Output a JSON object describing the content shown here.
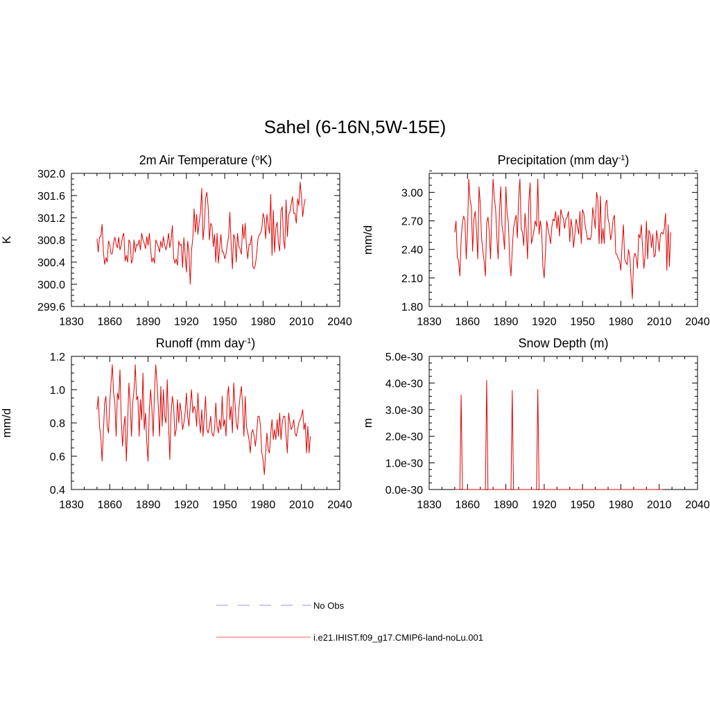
{
  "figure": {
    "title": "Sahel (6-16N,5W-15E)"
  },
  "legend": [
    {
      "label": "No Obs",
      "color": "#aaaaff",
      "dash": "dashed"
    },
    {
      "label": "i.e21.IHIST.f09_g17.CMIP6-land-noLu.001",
      "color": "#ff8080",
      "dash": "solid"
    }
  ],
  "chart_data": [
    {
      "type": "line",
      "title_main": "2m Air Temperature (",
      "title_sup": "o",
      "title_end": "K)",
      "ylabel": "K",
      "xlabel": "",
      "xlim": [
        1830,
        2040
      ],
      "ylim": [
        299.6,
        302.0
      ],
      "xticks": [
        1830,
        1860,
        1890,
        1920,
        1950,
        1980,
        2010,
        2040
      ],
      "xtick_labels": [
        "1830",
        "1860",
        "1890",
        "1920",
        "1950",
        "1980",
        "2010",
        "2040"
      ],
      "yticks": [
        299.6,
        300.0,
        300.4,
        300.8,
        301.2,
        301.6,
        302.0
      ],
      "ytick_labels": [
        "299.6",
        "300.0",
        "300.4",
        "300.8",
        "301.2",
        "301.6",
        "302.0"
      ],
      "color": "#e00000",
      "x_start": 1850,
      "values": [
        300.82,
        300.58,
        300.85,
        300.86,
        301.08,
        300.6,
        300.36,
        300.48,
        300.4,
        300.78,
        300.72,
        300.55,
        300.55,
        300.75,
        300.85,
        300.72,
        300.66,
        300.85,
        300.62,
        300.7,
        300.86,
        300.92,
        300.42,
        300.52,
        300.4,
        300.8,
        300.75,
        300.38,
        300.45,
        300.8,
        300.58,
        300.72,
        300.7,
        300.8,
        300.62,
        300.92,
        300.8,
        300.74,
        300.64,
        300.86,
        300.7,
        300.92,
        300.62,
        300.4,
        300.48,
        300.38,
        300.8,
        300.74,
        300.68,
        300.58,
        300.78,
        300.66,
        300.86,
        300.7,
        300.62,
        300.74,
        300.92,
        300.66,
        300.8,
        301.06,
        300.48,
        300.38,
        300.46,
        300.34,
        300.78,
        300.7,
        300.72,
        300.3,
        300.84,
        300.54,
        300.22,
        300.78,
        300.56,
        300.0,
        300.62,
        300.82,
        301.36,
        300.94,
        301.26,
        300.9,
        301.12,
        301.3,
        301.73,
        300.8,
        301.05,
        301.55,
        301.66,
        301.4,
        300.8,
        301.1,
        301.05,
        300.68,
        300.9,
        300.4,
        300.92,
        300.38,
        300.65,
        300.9,
        300.58,
        300.58,
        300.46,
        300.55,
        300.72,
        300.85,
        301.3,
        300.72,
        300.28,
        300.9,
        300.82,
        300.4,
        300.92,
        300.68,
        300.64,
        300.54,
        301.08,
        300.82,
        301.1,
        300.68,
        300.46,
        300.72,
        300.72,
        300.88,
        300.32,
        300.28,
        300.36,
        300.54,
        300.82,
        300.9,
        300.92,
        301.0,
        301.28,
        301.18,
        300.82,
        301.26,
        301.08,
        300.92,
        301.62,
        300.52,
        301.34,
        300.58,
        301.02,
        301.12,
        300.74,
        300.6,
        301.32,
        301.4,
        300.8,
        300.64,
        301.52,
        300.86,
        301.26,
        301.3,
        301.44,
        301.58,
        301.28,
        301.28,
        301.1,
        301.54,
        301.42,
        301.84,
        301.6,
        301.22,
        301.42,
        301.54
      ]
    },
    {
      "type": "line",
      "title_main": "Precipitation (mm day",
      "title_sup": "-1",
      "title_end": ")",
      "ylabel": "mm/d",
      "xlabel": "",
      "xlim": [
        1830,
        2040
      ],
      "ylim": [
        1.8,
        3.2
      ],
      "xticks": [
        1830,
        1860,
        1890,
        1920,
        1950,
        1980,
        2010,
        2040
      ],
      "xtick_labels": [
        "1830",
        "1860",
        "1890",
        "1920",
        "1950",
        "1980",
        "2010",
        "2040"
      ],
      "yticks": [
        1.8,
        2.1,
        2.4,
        2.7,
        3.0
      ],
      "ytick_labels": [
        "1.80",
        "2.10",
        "2.40",
        "2.70",
        "3.00"
      ],
      "color": "#e00000",
      "x_start": 1850,
      "values": [
        2.58,
        2.7,
        2.32,
        2.28,
        2.12,
        2.5,
        2.68,
        2.75,
        2.7,
        2.3,
        2.6,
        3.14,
        2.92,
        2.85,
        2.38,
        2.72,
        2.8,
        2.6,
        2.3,
        3.06,
        2.88,
        2.52,
        2.38,
        2.28,
        2.12,
        2.68,
        2.74,
        2.6,
        2.3,
        2.78,
        3.14,
        2.94,
        2.82,
        2.52,
        2.3,
        2.8,
        3.06,
        2.65,
        2.56,
        2.4,
        3.06,
        2.78,
        2.68,
        2.28,
        2.12,
        2.4,
        2.62,
        2.7,
        2.76,
        2.52,
        2.94,
        3.14,
        2.62,
        2.58,
        2.44,
        2.78,
        2.6,
        2.3,
        2.9,
        3.1,
        2.46,
        2.52,
        2.6,
        2.7,
        2.64,
        3.14,
        2.56,
        2.7,
        2.6,
        2.22,
        2.1,
        2.36,
        2.7,
        2.62,
        2.55,
        2.46,
        2.64,
        2.72,
        2.7,
        2.8,
        2.62,
        2.76,
        2.54,
        2.82,
        2.76,
        2.72,
        2.62,
        2.72,
        2.74,
        2.8,
        2.48,
        2.72,
        2.62,
        2.42,
        2.56,
        2.72,
        2.64,
        2.56,
        2.8,
        2.46,
        2.82,
        2.78,
        2.66,
        2.58,
        2.5,
        2.52,
        2.5,
        2.56,
        2.84,
        2.74,
        2.62,
        3.0,
        2.92,
        2.46,
        2.96,
        2.46,
        2.62,
        2.46,
        2.88,
        2.92,
        2.72,
        2.66,
        2.5,
        2.58,
        2.72,
        2.76,
        2.36,
        2.34,
        2.3,
        2.28,
        2.18,
        2.46,
        2.66,
        2.3,
        2.26,
        2.24,
        2.4,
        2.32,
        2.1,
        1.88,
        2.3,
        2.36,
        2.32,
        2.2,
        2.56,
        2.52,
        2.66,
        2.42,
        2.2,
        2.34,
        2.7,
        2.3,
        2.6,
        2.56,
        2.42,
        2.56,
        2.32,
        2.34,
        2.6,
        2.5,
        2.38,
        2.56,
        2.58,
        2.56,
        2.62,
        2.78,
        2.18,
        2.66,
        2.22,
        2.58
      ]
    },
    {
      "type": "line",
      "title_main": "Runoff (mm day",
      "title_sup": "-1",
      "title_end": ")",
      "ylabel": "mm/d",
      "xlabel": "",
      "xlim": [
        1830,
        2040
      ],
      "ylim": [
        0.4,
        1.2
      ],
      "xticks": [
        1830,
        1860,
        1890,
        1920,
        1950,
        1980,
        2010,
        2040
      ],
      "xtick_labels": [
        "1830",
        "1860",
        "1890",
        "1920",
        "1950",
        "1980",
        "2010",
        "2040"
      ],
      "yticks": [
        0.4,
        0.6,
        0.8,
        1.0,
        1.2
      ],
      "ytick_labels": [
        "0.4",
        "0.6",
        "0.8",
        "1.0",
        "1.2"
      ],
      "color": "#e00000",
      "x_start": 1850,
      "values": [
        0.88,
        0.96,
        0.78,
        0.72,
        0.57,
        0.74,
        0.92,
        0.96,
        0.78,
        0.74,
        0.92,
        1.04,
        1.15,
        0.98,
        0.92,
        0.72,
        0.98,
        0.94,
        1.12,
        0.82,
        0.66,
        0.78,
        0.84,
        0.57,
        0.8,
        1.04,
        0.92,
        0.72,
        0.92,
        1.0,
        1.15,
        0.94,
        0.96,
        0.72,
        0.94,
        0.82,
        1.1,
        0.76,
        0.86,
        0.68,
        0.57,
        0.88,
        1.0,
        0.88,
        0.72,
        0.98,
        1.15,
        1.04,
        0.9,
        0.72,
        1.02,
        0.78,
        1.0,
        0.84,
        0.8,
        1.06,
        0.8,
        0.58,
        0.86,
        0.96,
        0.9,
        0.72,
        0.76,
        0.94,
        0.8,
        0.92,
        0.86,
        0.76,
        0.8,
        0.86,
        0.98,
        0.84,
        0.78,
        0.9,
        1.0,
        0.86,
        0.9,
        0.88,
        0.78,
        0.98,
        0.82,
        0.74,
        0.88,
        0.72,
        0.84,
        0.96,
        0.76,
        0.74,
        0.78,
        0.84,
        0.74,
        0.72,
        0.76,
        0.92,
        0.78,
        0.74,
        0.82,
        0.76,
        0.96,
        0.78,
        0.82,
        0.72,
        0.96,
        1.02,
        0.82,
        0.9,
        0.74,
        1.04,
        0.92,
        0.8,
        0.76,
        0.88,
        0.96,
        1.02,
        0.9,
        0.72,
        0.96,
        0.78,
        0.74,
        0.7,
        0.62,
        0.74,
        0.76,
        0.72,
        0.66,
        0.74,
        0.84,
        0.84,
        0.78,
        0.62,
        0.58,
        0.49,
        0.62,
        0.74,
        0.64,
        0.62,
        0.74,
        0.82,
        0.7,
        0.76,
        0.7,
        0.82,
        0.72,
        0.86,
        0.7,
        0.8,
        0.84,
        0.84,
        0.72,
        0.62,
        0.86,
        0.8,
        0.76,
        0.78,
        0.82,
        0.74,
        0.72,
        0.76,
        0.8,
        0.82,
        0.84,
        0.88,
        0.76,
        0.8,
        0.62,
        0.78,
        0.62,
        0.72
      ]
    },
    {
      "type": "line",
      "title_main": "Snow Depth (m)",
      "title_sup": "",
      "title_end": "",
      "ylabel": "m",
      "xlabel": "",
      "xlim": [
        1830,
        2040
      ],
      "ylim": [
        0,
        5e-30
      ],
      "xticks": [
        1830,
        1860,
        1890,
        1920,
        1950,
        1980,
        2010,
        2040
      ],
      "xtick_labels": [
        "1830",
        "1860",
        "1890",
        "1920",
        "1950",
        "1980",
        "2010",
        "2040"
      ],
      "yticks": [
        0,
        1e-30,
        2e-30,
        3e-30,
        4e-30,
        5e-30
      ],
      "ytick_labels": [
        "0.0e-30",
        "1.0e-30",
        "2.0e-30",
        "3.0e-30",
        "4.0e-30",
        "5.0e-30"
      ],
      "color": "#e00000",
      "x": [
        1850,
        1854,
        1855,
        1856,
        1874,
        1875,
        1876,
        1894,
        1895,
        1896,
        1914,
        1915,
        1916,
        2013
      ],
      "y": [
        0,
        0,
        3.55e-30,
        0,
        0,
        4.1e-30,
        0,
        0,
        3.72e-30,
        0,
        0,
        3.76e-30,
        0,
        0
      ]
    }
  ]
}
